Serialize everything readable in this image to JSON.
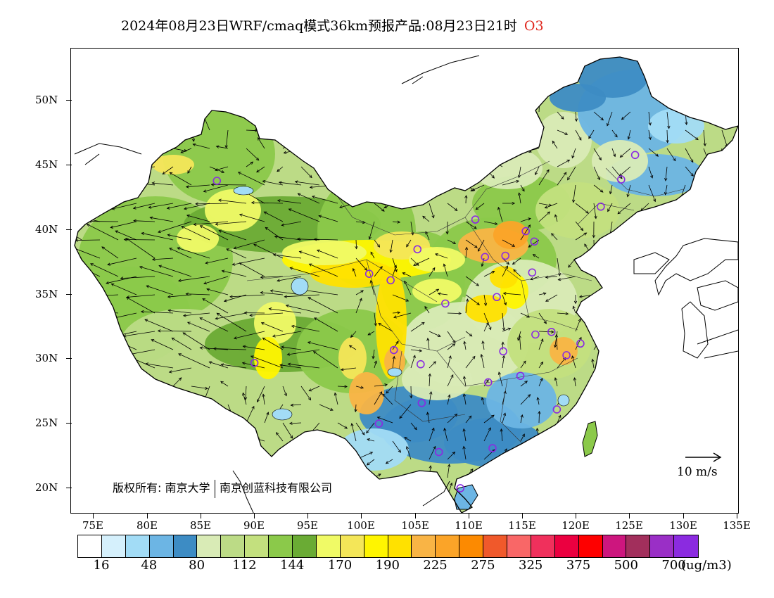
{
  "title": {
    "main": "2024年08月23日WRF/cmaq模式36km预报产品:08月23日21时",
    "species": "O3"
  },
  "map": {
    "lon_labels": [
      "75E",
      "80E",
      "85E",
      "90E",
      "95E",
      "100E",
      "105E",
      "110E",
      "115E",
      "120E",
      "125E",
      "130E",
      "135E"
    ],
    "lat_labels": [
      "50N",
      "45N",
      "40N",
      "35N",
      "30N",
      "25N",
      "20N"
    ],
    "copyright_prefix": "版权所有:",
    "copyright_org1": "南京大学",
    "copyright_org2": "南京创蓝科技有限公司",
    "vector_reference": "10 m/s",
    "station_marker_color": "#8a2be2",
    "stations": [
      {
        "lon": 87.6,
        "lat": 43.8
      },
      {
        "lon": 91.1,
        "lat": 29.7
      },
      {
        "lon": 101.8,
        "lat": 36.6
      },
      {
        "lon": 103.8,
        "lat": 36.1
      },
      {
        "lon": 106.3,
        "lat": 38.5
      },
      {
        "lon": 104.1,
        "lat": 30.7
      },
      {
        "lon": 106.6,
        "lat": 29.6
      },
      {
        "lon": 102.7,
        "lat": 25.0
      },
      {
        "lon": 106.7,
        "lat": 26.6
      },
      {
        "lon": 108.3,
        "lat": 22.8
      },
      {
        "lon": 110.3,
        "lat": 20.0
      },
      {
        "lon": 113.3,
        "lat": 23.1
      },
      {
        "lon": 112.9,
        "lat": 28.2
      },
      {
        "lon": 115.9,
        "lat": 28.7
      },
      {
        "lon": 114.3,
        "lat": 30.6
      },
      {
        "lon": 117.3,
        "lat": 31.9
      },
      {
        "lon": 118.8,
        "lat": 32.1
      },
      {
        "lon": 120.2,
        "lat": 30.3
      },
      {
        "lon": 121.5,
        "lat": 31.2
      },
      {
        "lon": 119.3,
        "lat": 26.1
      },
      {
        "lon": 108.9,
        "lat": 34.3
      },
      {
        "lon": 113.7,
        "lat": 34.8
      },
      {
        "lon": 117.0,
        "lat": 36.7
      },
      {
        "lon": 112.6,
        "lat": 37.9
      },
      {
        "lon": 114.5,
        "lat": 38.0
      },
      {
        "lon": 117.2,
        "lat": 39.1
      },
      {
        "lon": 116.4,
        "lat": 39.9
      },
      {
        "lon": 111.7,
        "lat": 40.8
      },
      {
        "lon": 123.4,
        "lat": 41.8
      },
      {
        "lon": 125.3,
        "lat": 43.9
      },
      {
        "lon": 126.6,
        "lat": 45.8
      }
    ]
  },
  "legend": {
    "colors": [
      "#ffffff",
      "#d5f0fc",
      "#a2dcf6",
      "#6cb5e4",
      "#3d8cc4",
      "#d9ebb6",
      "#bcdb86",
      "#c3e07e",
      "#8bc94a",
      "#6aab34",
      "#f0fa66",
      "#f4e658",
      "#fff500",
      "#ffe100",
      "#f9b445",
      "#fba428",
      "#fc8a01",
      "#f0592b",
      "#f96767",
      "#f0305c",
      "#eb0040",
      "#fe0000",
      "#cd167e",
      "#a22f5c",
      "#9a2fc6",
      "#8b2be0"
    ],
    "labels": [
      "16",
      "48",
      "80",
      "112",
      "144",
      "170",
      "190",
      "225",
      "275",
      "325",
      "375",
      "500",
      "700"
    ],
    "unit": "(ug/m3)"
  }
}
